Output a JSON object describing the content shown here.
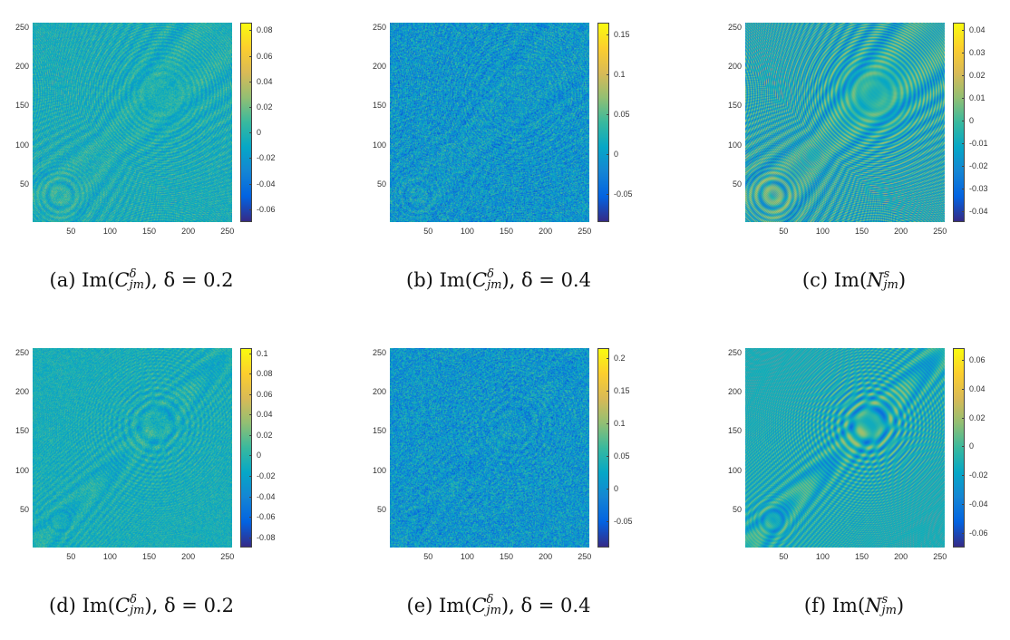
{
  "chart_data": [
    {
      "type": "heatmap",
      "label": "(a)",
      "op": "Im",
      "symbol": "C",
      "sup": "δ",
      "sub": "jm",
      "suffix": ", δ = 0.2",
      "xlim": [
        1,
        256
      ],
      "ylim": [
        1,
        256
      ],
      "xticks": [
        50,
        100,
        150,
        200,
        250
      ],
      "yticks": [
        50,
        100,
        150,
        200,
        250
      ],
      "clim": [
        -0.07,
        0.086
      ],
      "cticks": [
        0.08,
        0.06,
        0.04,
        0.02,
        0,
        -0.02,
        -0.04,
        -0.06
      ],
      "colormap": "parula"
    },
    {
      "type": "heatmap",
      "label": "(b)",
      "op": "Im",
      "symbol": "C",
      "sup": "δ",
      "sub": "jm",
      "suffix": ", δ = 0.4",
      "xlim": [
        1,
        256
      ],
      "ylim": [
        1,
        256
      ],
      "xticks": [
        50,
        100,
        150,
        200,
        250
      ],
      "yticks": [
        50,
        100,
        150,
        200,
        250
      ],
      "clim": [
        -0.085,
        0.165
      ],
      "cticks": [
        0.15,
        0.1,
        0.05,
        0,
        -0.05
      ],
      "colormap": "parula"
    },
    {
      "type": "heatmap",
      "label": "(c)",
      "op": "Im",
      "symbol": "N",
      "sup": "s",
      "sub": "jm",
      "suffix": "",
      "xlim": [
        1,
        256
      ],
      "ylim": [
        1,
        256
      ],
      "xticks": [
        50,
        100,
        150,
        200,
        250
      ],
      "yticks": [
        50,
        100,
        150,
        200,
        250
      ],
      "clim": [
        -0.045,
        0.043
      ],
      "cticks": [
        0.04,
        0.03,
        0.02,
        0.01,
        0,
        -0.01,
        -0.02,
        -0.03,
        -0.04
      ],
      "colormap": "parula"
    },
    {
      "type": "heatmap",
      "label": "(d)",
      "op": "Im",
      "symbol": "C",
      "sup": "δ",
      "sub": "jm",
      "suffix": ", δ = 0.2",
      "xlim": [
        1,
        256
      ],
      "ylim": [
        1,
        256
      ],
      "xticks": [
        50,
        100,
        150,
        200,
        250
      ],
      "yticks": [
        50,
        100,
        150,
        200,
        250
      ],
      "clim": [
        -0.09,
        0.105
      ],
      "cticks": [
        0.1,
        0.08,
        0.06,
        0.04,
        0.02,
        0,
        -0.02,
        -0.04,
        -0.06,
        -0.08
      ],
      "colormap": "parula"
    },
    {
      "type": "heatmap",
      "label": "(e)",
      "op": "Im",
      "symbol": "C",
      "sup": "δ",
      "sub": "jm",
      "suffix": ", δ = 0.4",
      "xlim": [
        1,
        256
      ],
      "ylim": [
        1,
        256
      ],
      "xticks": [
        50,
        100,
        150,
        200,
        250
      ],
      "yticks": [
        50,
        100,
        150,
        200,
        250
      ],
      "clim": [
        -0.09,
        0.215
      ],
      "cticks": [
        0.2,
        0.15,
        0.1,
        0.05,
        0,
        -0.05
      ],
      "colormap": "parula"
    },
    {
      "type": "heatmap",
      "label": "(f)",
      "op": "Im",
      "symbol": "N",
      "sup": "s",
      "sub": "jm",
      "suffix": "",
      "xlim": [
        1,
        256
      ],
      "ylim": [
        1,
        256
      ],
      "xticks": [
        50,
        100,
        150,
        200,
        250
      ],
      "yticks": [
        50,
        100,
        150,
        200,
        250
      ],
      "clim": [
        -0.07,
        0.068
      ],
      "cticks": [
        0.06,
        0.04,
        0.02,
        0,
        -0.02,
        -0.04,
        -0.06
      ],
      "colormap": "parula"
    }
  ]
}
